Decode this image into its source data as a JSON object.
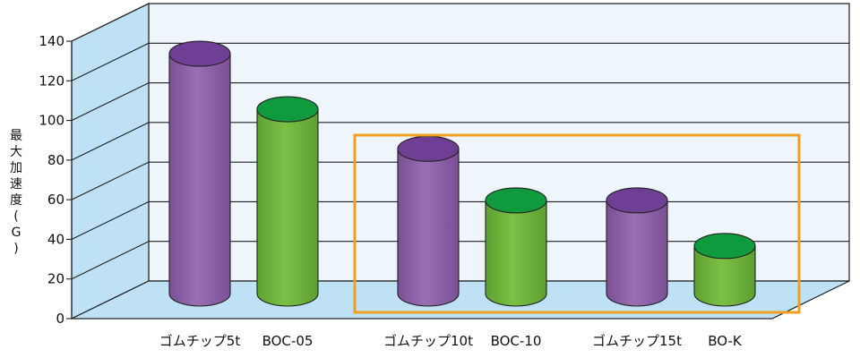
{
  "chart_data": {
    "type": "bar",
    "style": "3d-cylinder",
    "ylabel": "最大加速度(G)",
    "ylim": [
      0,
      140
    ],
    "yticks": [
      0,
      20,
      40,
      60,
      80,
      100,
      120,
      140
    ],
    "grid": true,
    "categories": [
      "ゴムチップ5t",
      "BOC-05",
      "ゴムチップ10t",
      "BOC-10",
      "ゴムチップ15t",
      "BO-K"
    ],
    "values": [
      121,
      93,
      73,
      47,
      47,
      24
    ],
    "bar_colors": [
      "#8e62a8",
      "#6db33a",
      "#8e62a8",
      "#6db33a",
      "#8e62a8",
      "#6db33a"
    ],
    "highlight": {
      "from_index": 2,
      "to_index": 5,
      "color": "#f0a020"
    }
  }
}
